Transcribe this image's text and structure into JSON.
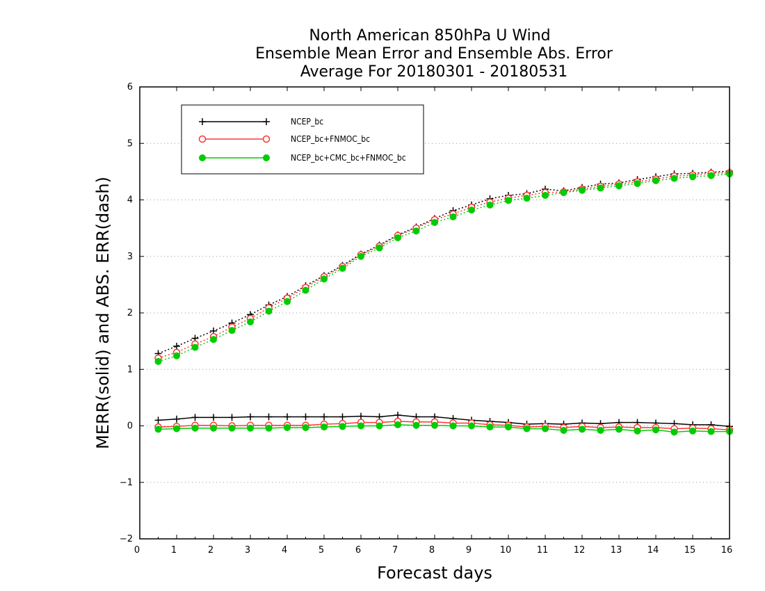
{
  "chart_data": {
    "type": "line",
    "title": [
      "North American 850hPa U Wind",
      "Ensemble Mean Error and Ensemble Abs. Error",
      "Average For 20180301 - 20180531"
    ],
    "xlabel": "Forecast days",
    "ylabel": "MERR(solid) and ABS. ERR(dash)",
    "xlim": [
      0,
      16
    ],
    "ylim": [
      -2,
      6
    ],
    "xticks": [
      0,
      1,
      2,
      3,
      4,
      5,
      6,
      7,
      8,
      9,
      10,
      11,
      12,
      13,
      14,
      15,
      16
    ],
    "yticks": [
      -2,
      -1,
      0,
      1,
      2,
      3,
      4,
      5,
      6
    ],
    "grid": "horizontal dotted",
    "legend_position": "top-left",
    "x": [
      0.5,
      1,
      1.5,
      2,
      2.5,
      3,
      3.5,
      4,
      4.5,
      5,
      5.5,
      6,
      6.5,
      7,
      7.5,
      8,
      8.5,
      9,
      9.5,
      10,
      10.5,
      11,
      11.5,
      12,
      12.5,
      13,
      13.5,
      14,
      14.5,
      15,
      15.5,
      16
    ],
    "series": [
      {
        "name": "NCEP_bc",
        "color": "#000000",
        "marker": "plus",
        "merr": [
          0.1,
          0.12,
          0.15,
          0.15,
          0.15,
          0.16,
          0.16,
          0.16,
          0.16,
          0.16,
          0.16,
          0.17,
          0.16,
          0.19,
          0.16,
          0.16,
          0.13,
          0.1,
          0.08,
          0.06,
          0.03,
          0.04,
          0.03,
          0.05,
          0.04,
          0.06,
          0.06,
          0.05,
          0.04,
          0.02,
          0.02,
          -0.01
        ],
        "abs_err": [
          1.28,
          1.41,
          1.55,
          1.68,
          1.82,
          1.97,
          2.14,
          2.29,
          2.48,
          2.66,
          2.84,
          3.04,
          3.2,
          3.38,
          3.52,
          3.67,
          3.81,
          3.91,
          4.02,
          4.08,
          4.11,
          4.19,
          4.16,
          4.22,
          4.28,
          4.3,
          4.36,
          4.41,
          4.46,
          4.47,
          4.49,
          4.51
        ]
      },
      {
        "name": "NCEP_bc+FNMOC_bc",
        "color": "#ff3333",
        "marker": "open-circle",
        "merr": [
          -0.02,
          -0.01,
          0.01,
          0.01,
          0.0,
          0.01,
          0.01,
          0.01,
          0.01,
          0.03,
          0.04,
          0.06,
          0.06,
          0.08,
          0.07,
          0.07,
          0.05,
          0.05,
          0.02,
          0.01,
          -0.02,
          -0.01,
          -0.03,
          -0.01,
          -0.03,
          -0.02,
          -0.03,
          -0.03,
          -0.05,
          -0.04,
          -0.05,
          -0.07
        ],
        "abs_err": [
          1.2,
          1.3,
          1.45,
          1.58,
          1.75,
          1.9,
          2.09,
          2.26,
          2.45,
          2.64,
          2.82,
          3.03,
          3.18,
          3.37,
          3.5,
          3.65,
          3.75,
          3.87,
          3.96,
          4.03,
          4.08,
          4.13,
          4.14,
          4.19,
          4.24,
          4.28,
          4.32,
          4.37,
          4.42,
          4.44,
          4.47,
          4.48
        ]
      },
      {
        "name": "NCEP_bc+CMC_bc+FNMOC_bc",
        "color": "#00cc00",
        "marker": "filled-circle",
        "merr": [
          -0.06,
          -0.05,
          -0.04,
          -0.04,
          -0.04,
          -0.04,
          -0.04,
          -0.03,
          -0.03,
          -0.02,
          -0.01,
          0.0,
          0.0,
          0.02,
          0.01,
          0.01,
          0.0,
          0.0,
          -0.02,
          -0.02,
          -0.05,
          -0.05,
          -0.08,
          -0.06,
          -0.08,
          -0.06,
          -0.09,
          -0.07,
          -0.11,
          -0.09,
          -0.1,
          -0.1
        ],
        "abs_err": [
          1.14,
          1.24,
          1.39,
          1.53,
          1.69,
          1.84,
          2.03,
          2.2,
          2.4,
          2.6,
          2.79,
          3.0,
          3.15,
          3.33,
          3.45,
          3.6,
          3.7,
          3.82,
          3.91,
          3.99,
          4.03,
          4.08,
          4.13,
          4.17,
          4.21,
          4.25,
          4.29,
          4.34,
          4.38,
          4.41,
          4.43,
          4.46
        ]
      }
    ]
  }
}
